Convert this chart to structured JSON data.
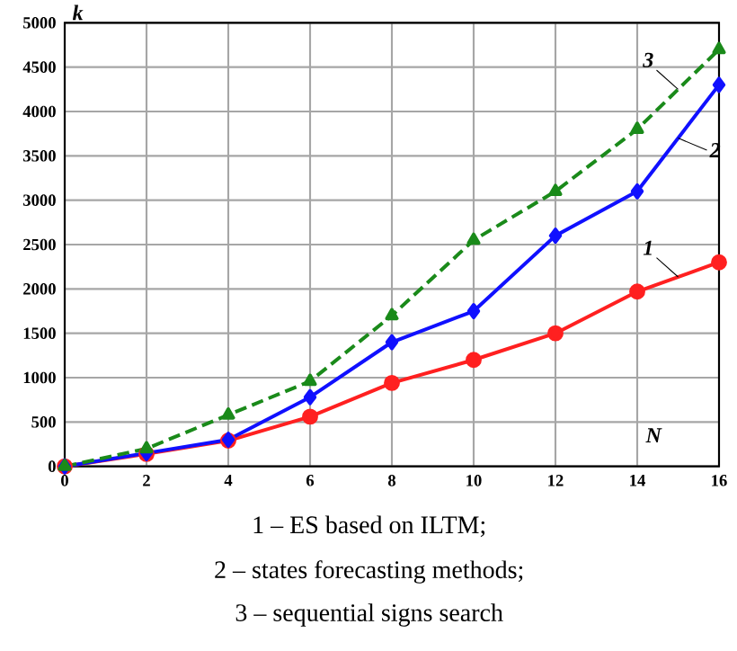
{
  "chart_data": {
    "type": "line",
    "xlabel": "N",
    "ylabel": "k",
    "x": [
      0,
      2,
      4,
      6,
      8,
      10,
      12,
      14,
      16
    ],
    "series": [
      {
        "name": "1",
        "color": "#ff2020",
        "marker": "circle",
        "line_style": "solid",
        "values": [
          0,
          140,
          290,
          560,
          940,
          1200,
          1500,
          1970,
          2300
        ]
      },
      {
        "name": "2",
        "color": "#1010ff",
        "marker": "diamond",
        "line_style": "solid",
        "values": [
          0,
          150,
          300,
          780,
          1400,
          1750,
          2600,
          3100,
          4300
        ]
      },
      {
        "name": "3",
        "color": "#1a8a1a",
        "marker": "triangle",
        "line_style": "dashed",
        "values": [
          0,
          200,
          580,
          960,
          1700,
          2550,
          3100,
          3800,
          4700
        ]
      }
    ],
    "xlim": [
      0,
      16
    ],
    "ylim": [
      0,
      5000
    ],
    "xticks": [
      0,
      2,
      4,
      6,
      8,
      10,
      12,
      14,
      16
    ],
    "yticks": [
      0,
      500,
      1000,
      1500,
      2000,
      2500,
      3000,
      3500,
      4000,
      4500,
      5000
    ],
    "grid": true,
    "annotations": [
      "1 – ES based on ILTM;",
      "2 – states forecasting methods;",
      "3 – sequential signs search"
    ]
  }
}
